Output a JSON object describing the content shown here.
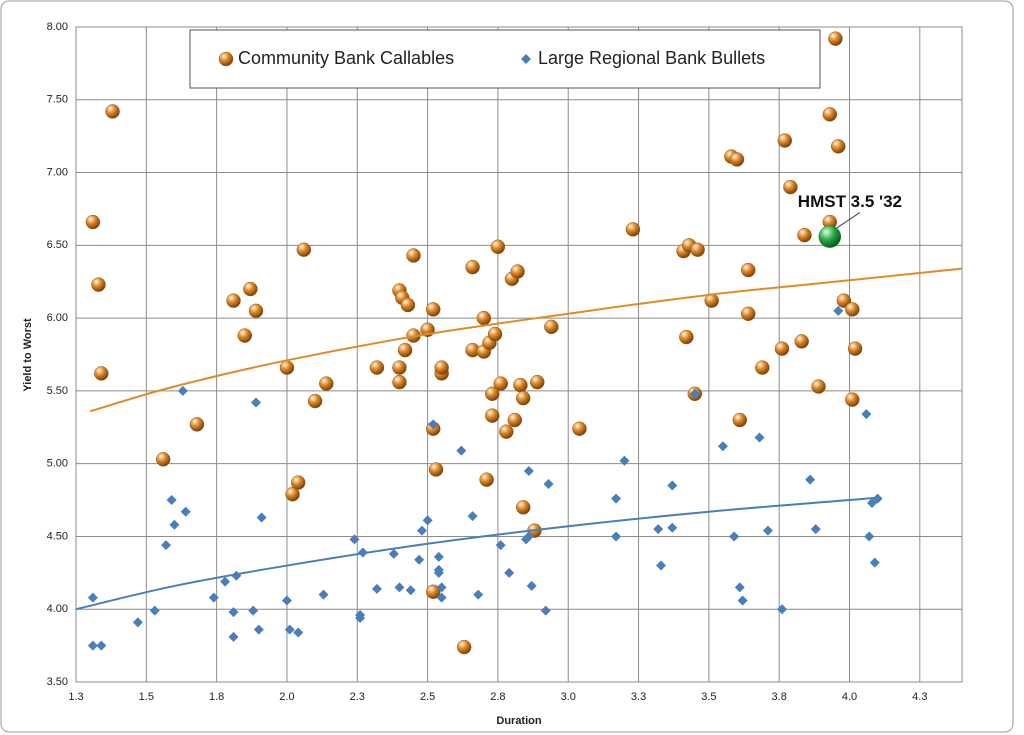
{
  "chart_data": {
    "type": "scatter",
    "xlabel": "Duration",
    "ylabel": "Yield to Worst",
    "xlim": [
      1.25,
      4.4
    ],
    "ylim": [
      3.5,
      8.0
    ],
    "xticks": [
      {
        "value": 1.25,
        "label": "1.3"
      },
      {
        "value": 1.5,
        "label": "1.5"
      },
      {
        "value": 1.75,
        "label": "1.8"
      },
      {
        "value": 2.0,
        "label": "2.0"
      },
      {
        "value": 2.25,
        "label": "2.3"
      },
      {
        "value": 2.5,
        "label": "2.5"
      },
      {
        "value": 2.75,
        "label": "2.8"
      },
      {
        "value": 3.0,
        "label": "3.0"
      },
      {
        "value": 3.25,
        "label": "3.3"
      },
      {
        "value": 3.5,
        "label": "3.5"
      },
      {
        "value": 3.75,
        "label": "3.8"
      },
      {
        "value": 4.0,
        "label": "4.0"
      },
      {
        "value": 4.25,
        "label": "4.3"
      }
    ],
    "yticks": [
      {
        "value": 3.5,
        "label": "3.50"
      },
      {
        "value": 4.0,
        "label": "4.00"
      },
      {
        "value": 4.5,
        "label": "4.50"
      },
      {
        "value": 5.0,
        "label": "5.00"
      },
      {
        "value": 5.5,
        "label": "5.50"
      },
      {
        "value": 6.0,
        "label": "6.00"
      },
      {
        "value": 6.5,
        "label": "6.50"
      },
      {
        "value": 7.0,
        "label": "7.00"
      },
      {
        "value": 7.5,
        "label": "7.50"
      },
      {
        "value": 8.0,
        "label": "8.00"
      }
    ],
    "grid": true,
    "series": [
      {
        "name": "Community Bank Callables",
        "color": "#e08a2a",
        "marker": "sphere",
        "x": [
          1.31,
          1.38,
          1.33,
          1.34,
          1.56,
          1.68,
          1.81,
          1.87,
          1.89,
          1.85,
          2.0,
          2.02,
          2.04,
          2.06,
          2.1,
          2.14,
          2.32,
          2.4,
          2.4,
          2.4,
          2.41,
          2.43,
          2.42,
          2.45,
          2.45,
          2.5,
          2.52,
          2.52,
          2.53,
          2.55,
          2.55,
          2.52,
          2.66,
          2.66,
          2.7,
          2.7,
          2.72,
          2.71,
          2.73,
          2.74,
          2.75,
          2.73,
          2.76,
          2.78,
          2.8,
          2.82,
          2.81,
          2.83,
          2.84,
          2.89,
          2.84,
          2.88,
          2.94,
          2.63,
          3.04,
          3.23,
          3.41,
          3.43,
          3.46,
          3.42,
          3.45,
          3.51,
          3.58,
          3.6,
          3.64,
          3.64,
          3.61,
          3.69,
          3.77,
          3.79,
          3.76,
          3.84,
          3.83,
          3.89,
          3.93,
          3.95,
          3.96,
          3.93,
          3.98,
          4.01,
          4.01,
          4.02
        ],
        "values": [
          6.66,
          7.42,
          6.23,
          5.62,
          5.03,
          5.27,
          6.12,
          6.2,
          6.05,
          5.88,
          5.66,
          4.79,
          4.87,
          6.47,
          5.43,
          5.55,
          5.66,
          5.66,
          5.56,
          6.19,
          6.14,
          6.09,
          5.78,
          6.43,
          5.88,
          5.92,
          6.06,
          5.24,
          4.96,
          5.62,
          5.66,
          4.12,
          6.35,
          5.78,
          5.77,
          6.0,
          5.83,
          4.89,
          5.48,
          5.89,
          6.49,
          5.33,
          5.55,
          5.22,
          6.27,
          6.32,
          5.3,
          5.54,
          5.45,
          5.56,
          4.7,
          4.54,
          5.94,
          3.74,
          5.24,
          6.61,
          6.46,
          6.5,
          6.47,
          5.87,
          5.48,
          6.12,
          7.11,
          7.09,
          6.33,
          6.03,
          5.3,
          5.66,
          7.22,
          6.9,
          5.79,
          6.57,
          5.84,
          5.53,
          7.4,
          7.92,
          7.18,
          6.66,
          6.12,
          6.06,
          5.44,
          5.79
        ],
        "trendline": {
          "x": [
            1.3,
            1.6,
            2.0,
            2.5,
            3.0,
            3.5,
            4.0,
            4.4
          ],
          "values": [
            5.36,
            5.53,
            5.71,
            5.89,
            6.03,
            6.16,
            6.26,
            6.34
          ]
        }
      },
      {
        "name": "Large Regional Bank Bullets",
        "color": "#4a7ebb",
        "marker": "diamond",
        "x": [
          1.31,
          1.31,
          1.34,
          1.47,
          1.53,
          1.57,
          1.59,
          1.6,
          1.64,
          1.63,
          1.74,
          1.78,
          1.81,
          1.82,
          1.81,
          1.88,
          1.89,
          1.9,
          1.91,
          2.0,
          2.01,
          2.04,
          2.13,
          2.24,
          2.26,
          2.26,
          2.27,
          2.32,
          2.38,
          2.4,
          2.44,
          2.47,
          2.5,
          2.48,
          2.52,
          2.54,
          2.54,
          2.54,
          2.55,
          2.55,
          2.62,
          2.66,
          2.68,
          2.76,
          2.79,
          2.85,
          2.86,
          2.86,
          2.87,
          2.92,
          2.93,
          3.17,
          3.17,
          3.2,
          3.32,
          3.33,
          3.37,
          3.37,
          3.45,
          3.55,
          3.59,
          3.61,
          3.62,
          3.68,
          3.71,
          3.76,
          3.86,
          3.88,
          3.96,
          4.06,
          4.07,
          4.08,
          4.1,
          4.09
        ],
        "values": [
          4.08,
          3.75,
          3.75,
          3.91,
          3.99,
          4.44,
          4.75,
          4.58,
          4.67,
          5.5,
          4.08,
          4.19,
          3.98,
          4.23,
          3.81,
          3.99,
          5.42,
          3.86,
          4.63,
          4.06,
          3.86,
          3.84,
          4.1,
          4.48,
          3.96,
          3.94,
          4.39,
          4.14,
          4.38,
          4.15,
          4.13,
          4.34,
          4.61,
          4.54,
          5.27,
          4.36,
          4.27,
          4.25,
          4.15,
          4.08,
          5.09,
          4.64,
          4.1,
          4.44,
          4.25,
          4.48,
          4.95,
          4.5,
          4.16,
          3.99,
          4.86,
          4.76,
          4.5,
          5.02,
          4.55,
          4.3,
          4.56,
          4.85,
          5.48,
          5.12,
          4.5,
          4.15,
          4.06,
          5.18,
          4.54,
          4.0,
          4.89,
          4.55,
          6.05,
          5.34,
          4.5,
          4.73,
          4.76,
          4.32
        ],
        "trendline": {
          "x": [
            1.25,
            1.6,
            2.0,
            2.5,
            3.0,
            3.5,
            4.0,
            4.11
          ],
          "values": [
            4.0,
            4.16,
            4.3,
            4.45,
            4.57,
            4.67,
            4.75,
            4.77
          ]
        }
      }
    ],
    "annotation": {
      "text": "HMST 3.5 '32",
      "x": 3.93,
      "y": 6.56,
      "color": "#2aa84a"
    }
  }
}
